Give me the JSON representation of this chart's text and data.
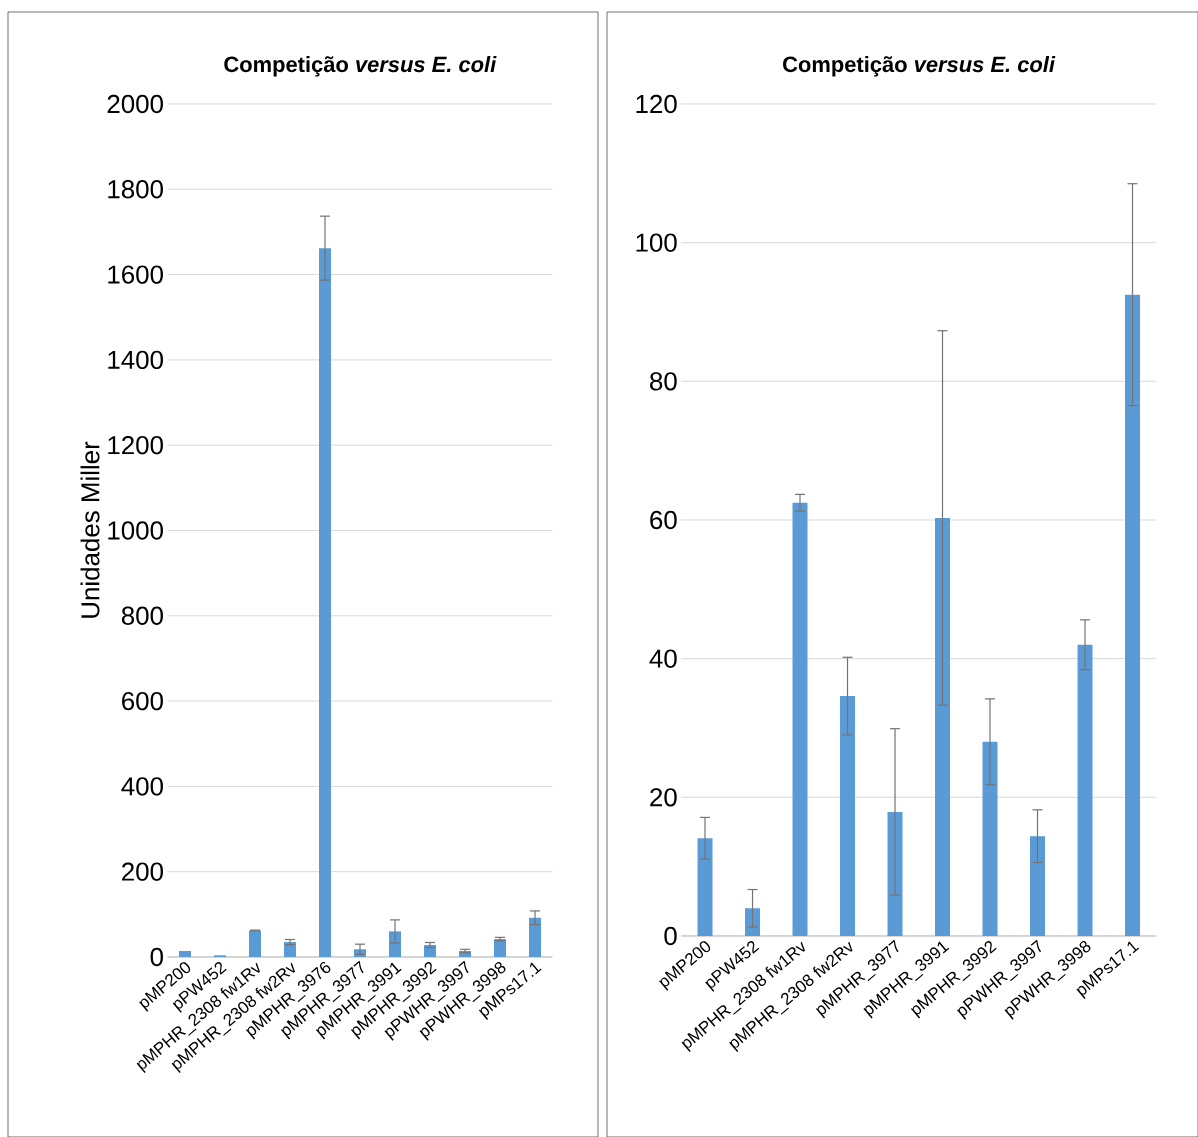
{
  "chart_data": [
    {
      "type": "bar",
      "title": "Competição *versus E. coli*",
      "ylabel": "Unidades Miller",
      "categories": [
        "pMP200",
        "pPW452",
        "pMPHR_2308 fw1Rv",
        "pMPHR_2308 fw2Rv",
        "pMPHR_3976",
        "pMPHR_3977",
        "pMPHR_3991",
        "pMPHR_3992",
        "pPWHR_3997",
        "pPWHR_3998",
        "pMPs17.1"
      ],
      "series": [
        {
          "color": "#5b9bd5",
          "values": [
            14,
            4,
            62,
            35,
            1662,
            18,
            60,
            28,
            14,
            42,
            92
          ],
          "errors": [
            null,
            null,
            1,
            6,
            75,
            12,
            27,
            6,
            4,
            4,
            16
          ]
        }
      ],
      "ylim": [
        0,
        2000
      ],
      "yticks": [
        0,
        200,
        400,
        600,
        800,
        1000,
        1200,
        1400,
        1600,
        1800,
        2000
      ],
      "grid": "y"
    },
    {
      "type": "bar",
      "title": "Competição *versus E. coli*",
      "categories": [
        "pMP200",
        "pPW452",
        "pMPHR_2308 fw1Rv",
        "pMPHR_2308 fw2Rv",
        "pMPHR_3977",
        "pMPHR_3991",
        "pMPHR_3992",
        "pPWHR_3997",
        "pPWHR_3998",
        "pMPs17.1"
      ],
      "series": [
        {
          "color": "#5b9bd5",
          "values": [
            14.1,
            4.0,
            62.5,
            34.6,
            17.9,
            60.3,
            28.0,
            14.4,
            42.0,
            92.5
          ],
          "errors": [
            3.0,
            2.7,
            1.2,
            5.6,
            12.0,
            27.0,
            6.2,
            3.8,
            3.6,
            16.0
          ]
        }
      ],
      "ylim": [
        0,
        120
      ],
      "yticks": [
        0,
        20,
        40,
        60,
        80,
        100,
        120
      ],
      "grid": "y"
    }
  ]
}
